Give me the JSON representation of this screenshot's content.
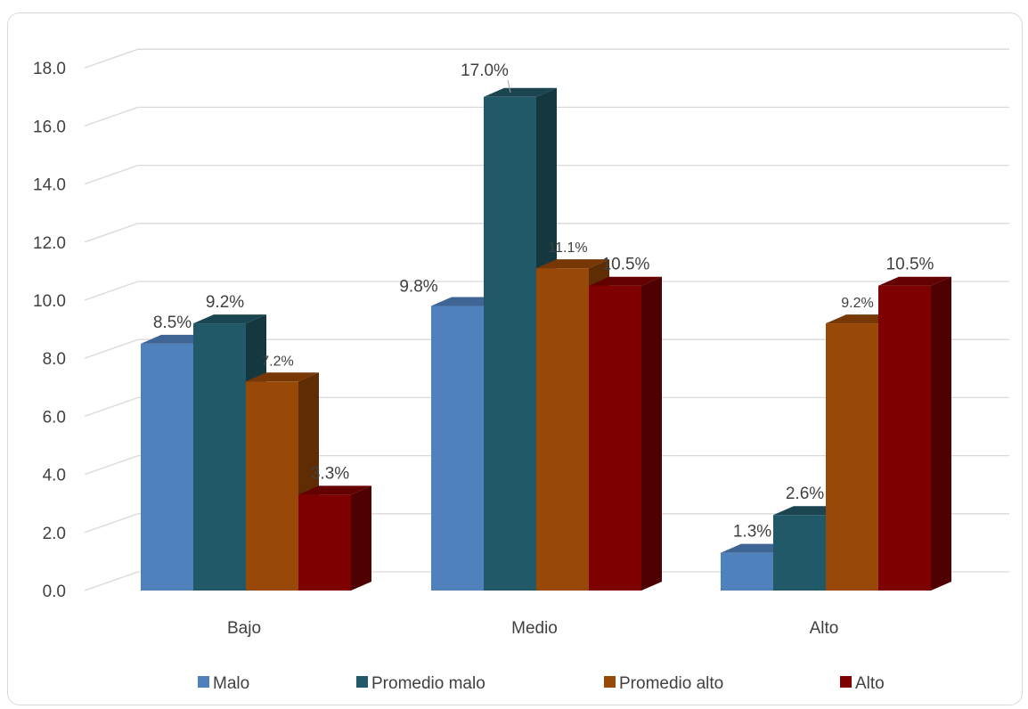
{
  "chart_data": {
    "type": "bar",
    "style": "3d-clustered-column",
    "categories": [
      "Bajo",
      "Medio",
      "Alto"
    ],
    "series": [
      {
        "name": "Malo",
        "values": [
          8.5,
          9.8,
          1.3
        ],
        "labels": [
          "8.5%",
          "9.8%",
          "1.3%"
        ],
        "color": "#4f81bd"
      },
      {
        "name": "Promedio malo",
        "values": [
          9.2,
          17.0,
          2.6
        ],
        "labels": [
          "9.2%",
          "17.0%",
          "2.6%"
        ],
        "color": "#215968"
      },
      {
        "name": "Promedio alto",
        "values": [
          7.2,
          11.1,
          9.2
        ],
        "labels": [
          "7.2%",
          "11.1%",
          "9.2%"
        ],
        "color": "#984807"
      },
      {
        "name": "Alto",
        "values": [
          3.3,
          10.5,
          10.5
        ],
        "labels": [
          "3.3%",
          "10.5%",
          "10.5%"
        ],
        "color": "#7f0000"
      }
    ],
    "y_ticks": [
      "0.0",
      "2.0",
      "4.0",
      "6.0",
      "8.0",
      "10.0",
      "12.0",
      "14.0",
      "16.0",
      "18.0"
    ],
    "ylim": [
      0,
      18
    ],
    "grid": true,
    "legend_position": "bottom",
    "title": "",
    "xlabel": "",
    "ylabel": ""
  }
}
